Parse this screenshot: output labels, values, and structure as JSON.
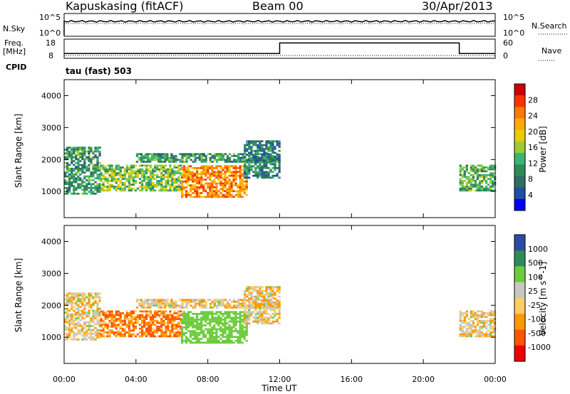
{
  "header": {
    "station": "Kapuskasing (fitACF)",
    "beam": "Beam 00",
    "date": "30/Apr/2013"
  },
  "noise_panel": {
    "left_label": "N.Sky",
    "right_label": "N.Search",
    "left_ticks": [
      "10^5",
      "10^0"
    ],
    "right_ticks": [
      "10^5",
      "10^0"
    ]
  },
  "freq_panel": {
    "left_label_1": "Freq.",
    "left_label_2": "[MHz]",
    "right_label": "Nave",
    "left_ticks": [
      "18",
      "8"
    ],
    "right_ticks": [
      "60",
      "0"
    ],
    "cpid_label": "CPID",
    "cpid_value": "tau (fast) 503"
  },
  "power_colorbar": {
    "title": "Power [dB]",
    "ticks": [
      "28",
      "24",
      "20",
      "16",
      "12",
      "8",
      "4"
    ],
    "colors": [
      "#cc0000",
      "#ff3300",
      "#ff7a00",
      "#ffaa00",
      "#e8cc00",
      "#9acd32",
      "#3cb371",
      "#2e8b57",
      "#2f6f5f",
      "#1f4fa0",
      "#0000ff"
    ]
  },
  "velocity_colorbar": {
    "title": "Velocity [m s^-1]",
    "ticks": [
      "1000",
      "500",
      "100",
      "25",
      "-25",
      "-100",
      "-500",
      "-1000"
    ],
    "colors": [
      "#2a4aa8",
      "#2e8b57",
      "#6ccc3c",
      "#c8c8c0",
      "#ffcc66",
      "#ff9900",
      "#ff5500",
      "#ee0000"
    ]
  },
  "chart_data": {
    "type": "heatmap",
    "panels": [
      "Power",
      "Velocity"
    ],
    "ylabel": "Slant Range [km]",
    "xlabel": "Time UT",
    "x_ticks": [
      "00:00",
      "04:00",
      "08:00",
      "12:00",
      "16:00",
      "20:00",
      "00:00"
    ],
    "y_ticks": [
      "4000",
      "3000",
      "2000",
      "1000"
    ],
    "ylim": [
      180,
      4500
    ],
    "xlim_hours": [
      0,
      24
    ],
    "scatter_blocks": [
      {
        "t0": 0.0,
        "t1": 2.0,
        "r0": 900,
        "r1": 2400,
        "power": 10,
        "velocity": 20
      },
      {
        "t0": 2.0,
        "t1": 6.5,
        "r0": 1000,
        "r1": 1800,
        "power": 14,
        "velocity": -100
      },
      {
        "t0": 6.5,
        "t1": 10.2,
        "r0": 800,
        "r1": 1800,
        "power": 22,
        "velocity": 200
      },
      {
        "t0": 4.0,
        "t1": 12.0,
        "r0": 1900,
        "r1": 2200,
        "power": 10,
        "velocity": 10
      },
      {
        "t0": 10.0,
        "t1": 12.0,
        "r0": 1400,
        "r1": 2600,
        "power": 8,
        "velocity": 15
      },
      {
        "t0": 22.0,
        "t1": 24.0,
        "r0": 1000,
        "r1": 1800,
        "power": 12,
        "velocity": 15
      }
    ],
    "freq_steps": [
      {
        "t0": 0.0,
        "t1": 12.0,
        "mhz": 10.5
      },
      {
        "t0": 12.0,
        "t1": 22.0,
        "mhz": 16.0
      },
      {
        "t0": 22.0,
        "t1": 24.0,
        "mhz": 10.5
      }
    ]
  }
}
